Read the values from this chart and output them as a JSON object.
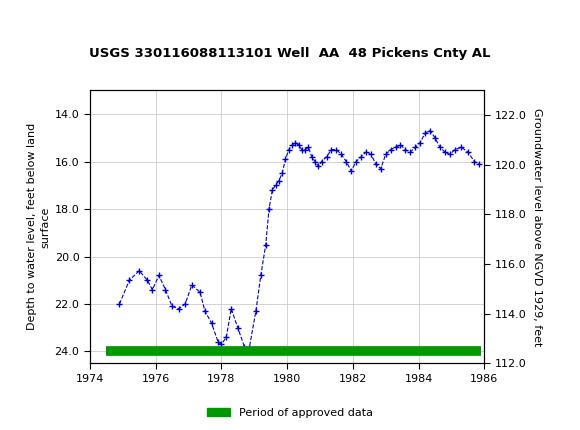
{
  "title": "USGS 330116088113101 Well  AA  48 Pickens Cnty AL",
  "ylabel_left": "Depth to water level, feet below land\nsurface",
  "ylabel_right": "Groundwater level above NGVD 1929, feet",
  "xlim": [
    1974,
    1986
  ],
  "ylim_left": [
    24.5,
    13.0
  ],
  "ylim_right": [
    112.0,
    123.0
  ],
  "yticks_left": [
    14.0,
    16.0,
    18.0,
    20.0,
    22.0,
    24.0
  ],
  "yticks_right": [
    112.0,
    114.0,
    116.0,
    118.0,
    120.0,
    122.0
  ],
  "xticks": [
    1974,
    1976,
    1978,
    1980,
    1982,
    1984,
    1986
  ],
  "line_color": "#0000CC",
  "marker": "+",
  "linestyle": "--",
  "bar_color": "#009900",
  "bar_y": 24.0,
  "bar_xstart": 1974.5,
  "bar_xend": 1985.9,
  "legend_label": "Period of approved data",
  "background_color": "#ffffff",
  "header_color": "#006633",
  "grid_color": "#cccccc",
  "data_x": [
    1974.9,
    1975.2,
    1975.5,
    1975.75,
    1975.9,
    1976.1,
    1976.3,
    1976.5,
    1976.7,
    1976.9,
    1977.1,
    1977.35,
    1977.5,
    1977.7,
    1977.9,
    1978.0,
    1978.15,
    1978.3,
    1978.5,
    1978.7,
    1978.85,
    1979.05,
    1979.2,
    1979.35,
    1979.45,
    1979.55,
    1979.65,
    1979.75,
    1979.85,
    1979.95,
    1980.05,
    1980.15,
    1980.25,
    1980.35,
    1980.45,
    1980.55,
    1980.65,
    1980.75,
    1980.85,
    1980.95,
    1981.05,
    1981.2,
    1981.35,
    1981.5,
    1981.65,
    1981.8,
    1981.95,
    1982.1,
    1982.25,
    1982.4,
    1982.55,
    1982.7,
    1982.85,
    1983.0,
    1983.15,
    1983.3,
    1983.45,
    1983.6,
    1983.75,
    1983.9,
    1984.05,
    1984.2,
    1984.35,
    1984.5,
    1984.65,
    1984.8,
    1984.95,
    1985.1,
    1985.3,
    1985.5,
    1985.7,
    1985.85
  ],
  "data_y": [
    22.0,
    21.0,
    20.6,
    21.0,
    21.4,
    20.8,
    21.4,
    22.1,
    22.2,
    22.0,
    21.2,
    21.5,
    22.3,
    22.8,
    23.6,
    23.7,
    23.4,
    22.2,
    23.0,
    23.8,
    23.85,
    22.3,
    20.8,
    19.5,
    18.0,
    17.2,
    17.0,
    16.8,
    16.5,
    15.9,
    15.5,
    15.3,
    15.2,
    15.3,
    15.5,
    15.5,
    15.4,
    15.8,
    16.0,
    16.2,
    16.0,
    15.8,
    15.5,
    15.5,
    15.7,
    16.0,
    16.4,
    16.0,
    15.8,
    15.6,
    15.7,
    16.1,
    16.3,
    15.7,
    15.5,
    15.4,
    15.3,
    15.5,
    15.6,
    15.4,
    15.2,
    14.8,
    14.7,
    15.0,
    15.4,
    15.6,
    15.7,
    15.5,
    15.4,
    15.6,
    16.0,
    16.1
  ]
}
